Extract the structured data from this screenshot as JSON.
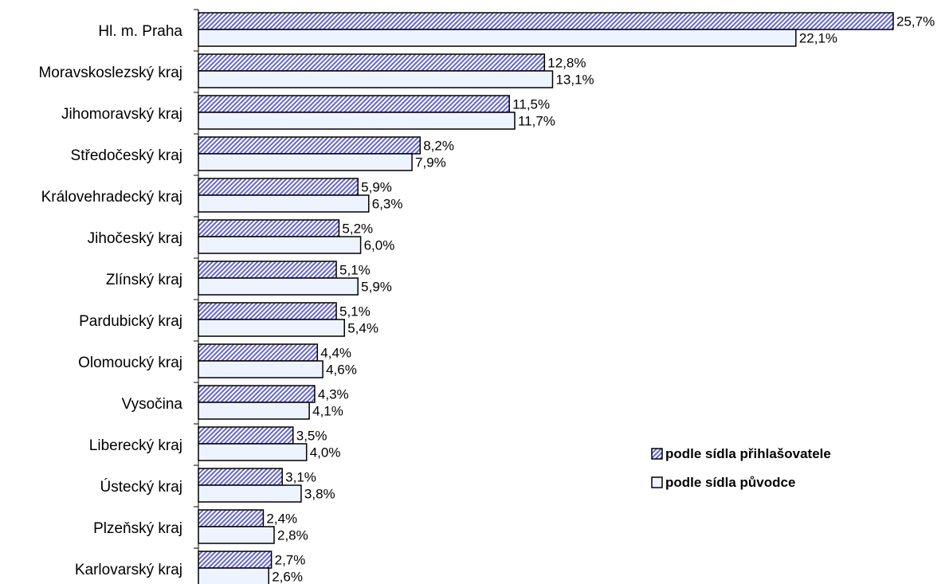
{
  "chart_data": {
    "type": "bar",
    "orientation": "horizontal",
    "categories": [
      "Hl. m. Praha",
      "Moravskoslezský kraj",
      "Jihomoravský kraj",
      "Středočeský kraj",
      "Královehradecký kraj",
      "Jihočeský kraj",
      "Zlínský kraj",
      "Pardubický kraj",
      "Olomoucký kraj",
      "Vysočina",
      "Liberecký kraj",
      "Ústecký kraj",
      "Plzeňský kraj",
      "Karlovarský kraj"
    ],
    "series": [
      {
        "name": "podle sídla přihlašovatele",
        "values": [
          25.7,
          12.8,
          11.5,
          8.2,
          5.9,
          5.2,
          5.1,
          5.1,
          4.4,
          4.3,
          3.5,
          3.1,
          2.4,
          2.7
        ],
        "labels": [
          "25,7%",
          "12,8%",
          "11,5%",
          "8,2%",
          "5,9%",
          "5,2%",
          "5,1%",
          "5,1%",
          "4,4%",
          "4,3%",
          "3,5%",
          "3,1%",
          "2,4%",
          "2,7%"
        ],
        "fill": "hatched",
        "color": "#6666cc"
      },
      {
        "name": "podle sídla původce",
        "values": [
          22.1,
          13.1,
          11.7,
          7.9,
          6.3,
          6.0,
          5.9,
          5.4,
          4.6,
          4.1,
          4.0,
          3.8,
          2.8,
          2.6
        ],
        "labels": [
          "22,1%",
          "13,1%",
          "11,7%",
          "7,9%",
          "6,3%",
          "6,0%",
          "5,9%",
          "5,4%",
          "4,6%",
          "4,1%",
          "4,0%",
          "3,8%",
          "2,8%",
          "2,6%"
        ],
        "fill": "solid",
        "color": "#eef4ff"
      }
    ],
    "xlim": [
      0,
      25.7
    ],
    "grid": false,
    "legend_position": "right-bottom",
    "unit": "%"
  }
}
